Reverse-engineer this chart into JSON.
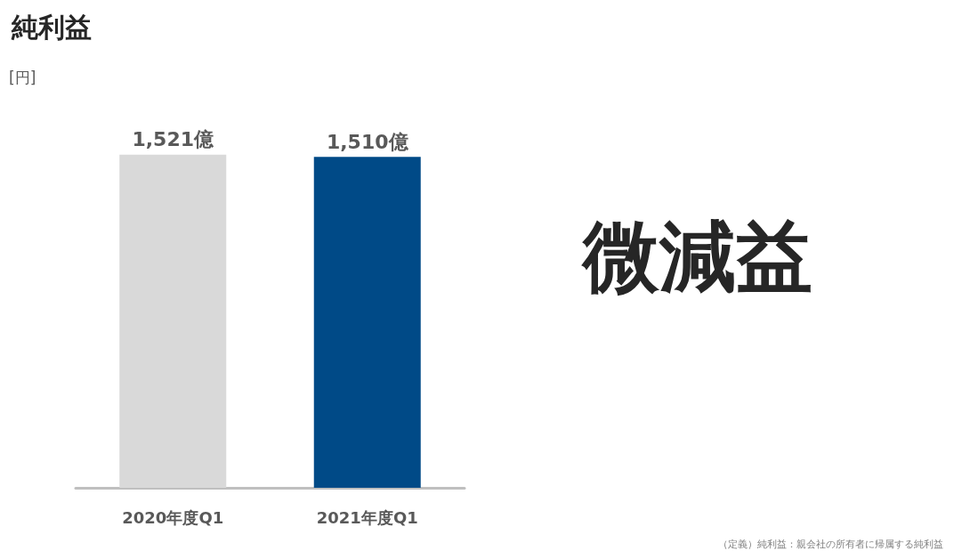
{
  "chart_data": {
    "type": "bar",
    "title": "純利益",
    "categories": [
      "2020年度Q1",
      "2021年度Q1"
    ],
    "values": [
      1521,
      1510
    ],
    "colors": [
      "#d9d9d9",
      "#004a87"
    ],
    "value_labels": [
      "1,521億",
      "1,510億"
    ],
    "annotations": [
      "[円]",
      "微減益",
      "（定義）純利益：親会社の所有者に帰属する純利益"
    ]
  }
}
